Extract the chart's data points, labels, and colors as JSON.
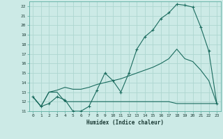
{
  "xlabel": "Humidex (Indice chaleur)",
  "xlim": [
    -0.5,
    23.5
  ],
  "ylim": [
    11,
    22.5
  ],
  "xticks": [
    0,
    1,
    2,
    3,
    4,
    5,
    6,
    7,
    8,
    9,
    10,
    11,
    12,
    13,
    14,
    15,
    16,
    17,
    18,
    19,
    20,
    21,
    22,
    23
  ],
  "yticks": [
    11,
    12,
    13,
    14,
    15,
    16,
    17,
    18,
    19,
    20,
    21,
    22
  ],
  "bg_color": "#cceae6",
  "grid_color": "#aed6d0",
  "line_color": "#1a6b5e",
  "line1_x": [
    0,
    1,
    2,
    3,
    4,
    5,
    6,
    7,
    8,
    9,
    10,
    11,
    12,
    13,
    14,
    15,
    16,
    17,
    18,
    19,
    20,
    21,
    22,
    23
  ],
  "line1_y": [
    12.5,
    11.5,
    11.8,
    12.5,
    12.2,
    11.0,
    11.0,
    11.5,
    13.2,
    15.0,
    14.2,
    13.0,
    15.0,
    17.5,
    18.8,
    19.5,
    20.7,
    21.3,
    22.2,
    22.1,
    21.9,
    19.8,
    17.3,
    11.8
  ],
  "line2_x": [
    0,
    1,
    2,
    3,
    4,
    5,
    6,
    7,
    8,
    9,
    10,
    11,
    12,
    13,
    14,
    15,
    16,
    17,
    18,
    19,
    20,
    21,
    22,
    23
  ],
  "line2_y": [
    12.5,
    11.5,
    13.0,
    13.0,
    12.0,
    12.0,
    12.0,
    12.0,
    12.0,
    12.0,
    12.0,
    12.0,
    12.0,
    12.0,
    12.0,
    12.0,
    12.0,
    12.0,
    11.8,
    11.8,
    11.8,
    11.8,
    11.8,
    11.8
  ],
  "line3_x": [
    0,
    1,
    2,
    3,
    4,
    5,
    6,
    7,
    8,
    9,
    10,
    11,
    12,
    13,
    14,
    15,
    16,
    17,
    18,
    19,
    20,
    21,
    22,
    23
  ],
  "line3_y": [
    12.5,
    11.5,
    13.0,
    13.2,
    13.5,
    13.3,
    13.3,
    13.5,
    13.8,
    14.0,
    14.2,
    14.4,
    14.7,
    15.0,
    15.3,
    15.6,
    16.0,
    16.5,
    17.5,
    16.5,
    16.2,
    15.3,
    14.2,
    11.8
  ]
}
